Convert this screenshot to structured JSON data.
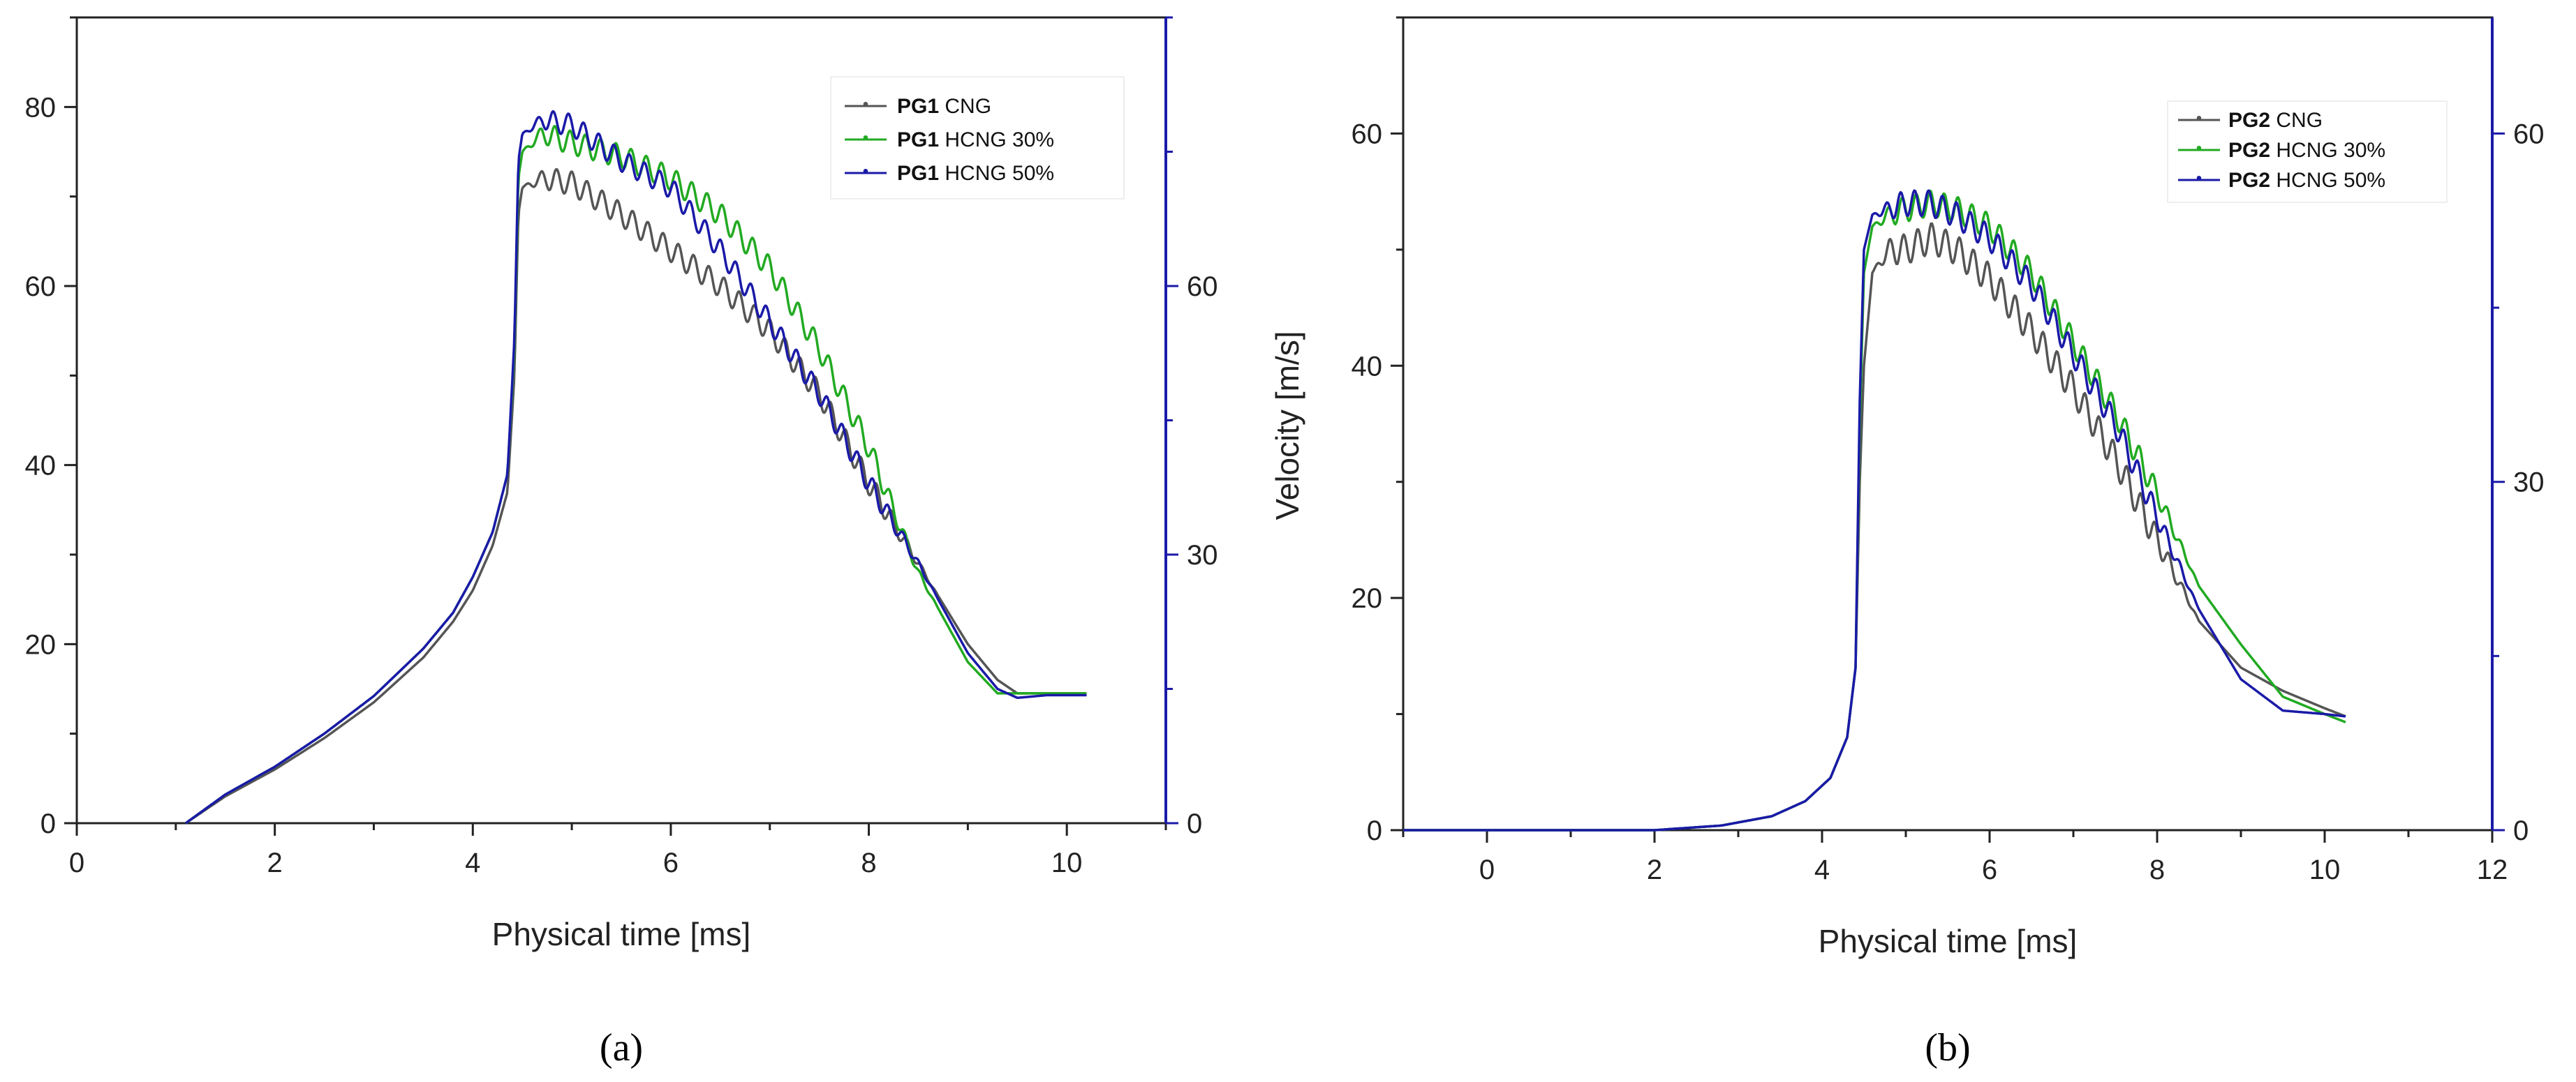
{
  "chart_data": [
    {
      "type": "line",
      "panel_label": "(a)",
      "xlabel": "Physical time [ms]",
      "ylabel": "",
      "xlim": [
        0,
        11
      ],
      "ylim": [
        0,
        90
      ],
      "right_ylim": [
        0,
        90
      ],
      "x_ticks": [
        0,
        2,
        4,
        6,
        8,
        10
      ],
      "y_ticks": [
        0,
        20,
        40,
        60,
        80
      ],
      "right_y_ticks": [
        0,
        30,
        60
      ],
      "axis_color_right": "#1a1aa8",
      "legend_position": "top-right",
      "series": [
        {
          "name": "CNG",
          "prefix": "PG1",
          "color": "#555555",
          "marker": "•",
          "x": [
            1.1,
            1.5,
            2,
            2.5,
            3,
            3.5,
            3.8,
            4.0,
            4.2,
            4.35,
            4.42,
            4.46,
            4.5,
            4.7,
            5.0,
            5.5,
            6.0,
            6.5,
            7.0,
            7.5,
            8.0,
            8.5,
            9.0,
            9.3,
            9.5,
            9.8,
            10.2
          ],
          "y": [
            0,
            3,
            6,
            9.5,
            13.5,
            18.5,
            22.5,
            26,
            31,
            37,
            50,
            68,
            71,
            72,
            71.5,
            68,
            64,
            60,
            55,
            48,
            38,
            29,
            20,
            16,
            14.5,
            14.5,
            14.5
          ],
          "osc": {
            "start": 4.5,
            "end": 8.7,
            "amp": 1.3,
            "freq": 6.5
          }
        },
        {
          "name": "HCNG 30%",
          "prefix": "PG1",
          "color": "#22aa22",
          "marker": "•",
          "x": [
            1.1,
            1.5,
            2,
            2.5,
            3,
            3.5,
            3.8,
            4.0,
            4.2,
            4.35,
            4.42,
            4.46,
            4.5,
            4.7,
            5.0,
            5.5,
            6.0,
            6.5,
            7.0,
            7.5,
            8.0,
            8.5,
            9.0,
            9.3,
            9.5,
            9.8,
            10.2
          ],
          "y": [
            0,
            3.2,
            6.3,
            10,
            14.2,
            19.5,
            23.5,
            27.5,
            32.5,
            39,
            53,
            72,
            75,
            77,
            76,
            74.5,
            72,
            68,
            62,
            53,
            42,
            28,
            18,
            14.5,
            14.5,
            14.5,
            14.5
          ],
          "osc": {
            "start": 4.5,
            "end": 8.7,
            "amp": 1.3,
            "freq": 6.5
          }
        },
        {
          "name": "HCNG 50%",
          "prefix": "PG1",
          "color": "#1a1aa8",
          "marker": "•",
          "x": [
            1.1,
            1.5,
            2,
            2.5,
            3,
            3.5,
            3.8,
            4.0,
            4.2,
            4.35,
            4.42,
            4.46,
            4.5,
            4.7,
            5.0,
            5.5,
            6.0,
            6.5,
            7.0,
            7.5,
            8.0,
            8.5,
            9.0,
            9.3,
            9.5,
            9.8,
            10.2
          ],
          "y": [
            0,
            3.2,
            6.3,
            10,
            14.2,
            19.5,
            23.5,
            27.5,
            32.5,
            39,
            54,
            74,
            77,
            78.5,
            78,
            74,
            71,
            64,
            56,
            48,
            38,
            29,
            19,
            15,
            14,
            14.3,
            14.3
          ],
          "osc": {
            "start": 4.5,
            "end": 8.7,
            "amp": 1.2,
            "freq": 6.5
          }
        }
      ]
    },
    {
      "type": "line",
      "panel_label": "(b)",
      "xlabel": "Physical time [ms]",
      "ylabel": "Velocity [m/s]",
      "xlim": [
        -1,
        12
      ],
      "ylim": [
        0,
        70
      ],
      "right_ylim": [
        0,
        70
      ],
      "x_ticks": [
        0,
        2,
        4,
        6,
        8,
        10,
        12
      ],
      "y_ticks": [
        0,
        20,
        40,
        60
      ],
      "right_y_ticks": [
        0,
        30,
        60
      ],
      "axis_color_right": "#1a1aa8",
      "legend_position": "top-right",
      "series": [
        {
          "name": "CNG",
          "prefix": "PG2",
          "color": "#555555",
          "marker": "•",
          "x": [
            -1,
            1,
            2,
            2.8,
            3.4,
            3.8,
            4.1,
            4.3,
            4.4,
            4.45,
            4.5,
            4.6,
            4.8,
            5.0,
            5.3,
            5.6,
            6.0,
            6.5,
            7.0,
            7.5,
            8.0,
            8.5,
            9.0,
            9.5,
            10.0,
            10.25
          ],
          "y": [
            0,
            0,
            0,
            0.4,
            1.2,
            2.5,
            4.5,
            8,
            14,
            30,
            40,
            48,
            50,
            50,
            51,
            50,
            47.5,
            43,
            38,
            32,
            25,
            18,
            14,
            12,
            10.5,
            9.8
          ],
          "osc": {
            "start": 4.6,
            "end": 8.5,
            "amp": 1.3,
            "freq": 6
          }
        },
        {
          "name": "HCNG 30%",
          "prefix": "PG2",
          "color": "#22aa22",
          "marker": "•",
          "x": [
            -1,
            1,
            2,
            2.8,
            3.4,
            3.8,
            4.1,
            4.3,
            4.4,
            4.45,
            4.5,
            4.6,
            4.8,
            5.0,
            5.3,
            5.6,
            6.0,
            6.5,
            7.0,
            7.5,
            8.0,
            8.5,
            9.0,
            9.5,
            10.0,
            10.25
          ],
          "y": [
            0,
            0,
            0,
            0.4,
            1.2,
            2.5,
            4.5,
            8,
            14,
            35,
            48,
            52,
            53,
            53.5,
            54,
            53.5,
            52,
            48,
            42,
            36,
            29,
            21,
            16,
            11.5,
            10,
            9.3
          ],
          "osc": {
            "start": 4.6,
            "end": 8.5,
            "amp": 1.1,
            "freq": 6
          }
        },
        {
          "name": "HCNG 50%",
          "prefix": "PG2",
          "color": "#1a1aa8",
          "marker": "•",
          "x": [
            -1,
            1,
            2,
            2.8,
            3.4,
            3.8,
            4.1,
            4.3,
            4.4,
            4.45,
            4.5,
            4.6,
            4.8,
            5.0,
            5.3,
            5.6,
            6.0,
            6.5,
            7.0,
            7.5,
            8.0,
            8.5,
            9.0,
            9.5,
            10.0,
            10.25
          ],
          "y": [
            0,
            0,
            0,
            0.4,
            1.2,
            2.5,
            4.5,
            8,
            14,
            37,
            50,
            53,
            53.5,
            54,
            54,
            53,
            51,
            47,
            41,
            35,
            27,
            19,
            13,
            10.3,
            10,
            9.8
          ],
          "osc": {
            "start": 4.6,
            "end": 8.5,
            "amp": 1.1,
            "freq": 6
          }
        }
      ]
    }
  ]
}
